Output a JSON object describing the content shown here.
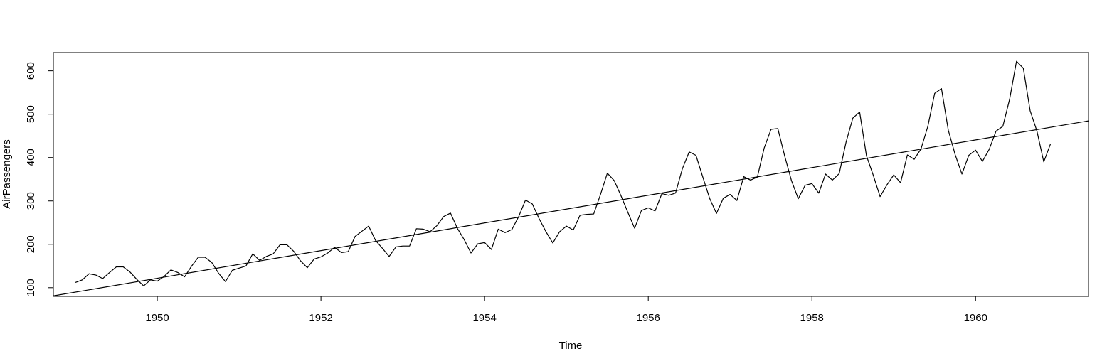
{
  "chart_data": {
    "type": "line",
    "xlabel": "Time",
    "ylabel": "AirPassengers",
    "xlim": [
      1948.73,
      1961.38
    ],
    "ylim": [
      80,
      642
    ],
    "x_ticks": [
      1950,
      1952,
      1954,
      1956,
      1958,
      1960
    ],
    "y_ticks": [
      100,
      200,
      300,
      400,
      500,
      600
    ],
    "grid": false,
    "legend": "none",
    "series": [
      {
        "type": "line",
        "start": 1949,
        "frequency": 12,
        "values": [
          112,
          118,
          132,
          129,
          121,
          135,
          148,
          148,
          136,
          119,
          104,
          118,
          115,
          126,
          141,
          135,
          125,
          149,
          170,
          170,
          158,
          133,
          114,
          140,
          145,
          150,
          178,
          163,
          172,
          178,
          199,
          199,
          184,
          162,
          146,
          166,
          171,
          180,
          193,
          181,
          183,
          218,
          230,
          242,
          209,
          191,
          172,
          194,
          196,
          196,
          236,
          235,
          229,
          243,
          264,
          272,
          237,
          211,
          180,
          201,
          204,
          188,
          235,
          227,
          234,
          264,
          302,
          293,
          259,
          229,
          203,
          229,
          242,
          233,
          267,
          269,
          270,
          315,
          364,
          347,
          312,
          274,
          237,
          278,
          284,
          277,
          317,
          313,
          318,
          374,
          413,
          405,
          355,
          306,
          271,
          306,
          315,
          301,
          356,
          348,
          355,
          422,
          465,
          467,
          404,
          347,
          305,
          336,
          340,
          318,
          362,
          348,
          363,
          435,
          491,
          505,
          404,
          359,
          310,
          337,
          360,
          342,
          406,
          396,
          420,
          472,
          548,
          559,
          463,
          407,
          362,
          405,
          417,
          391,
          419,
          461,
          472,
          535,
          622,
          606,
          508,
          461,
          390,
          432
        ]
      },
      {
        "type": "abline",
        "intercept": -62056,
        "slope": 31.886
      }
    ]
  }
}
